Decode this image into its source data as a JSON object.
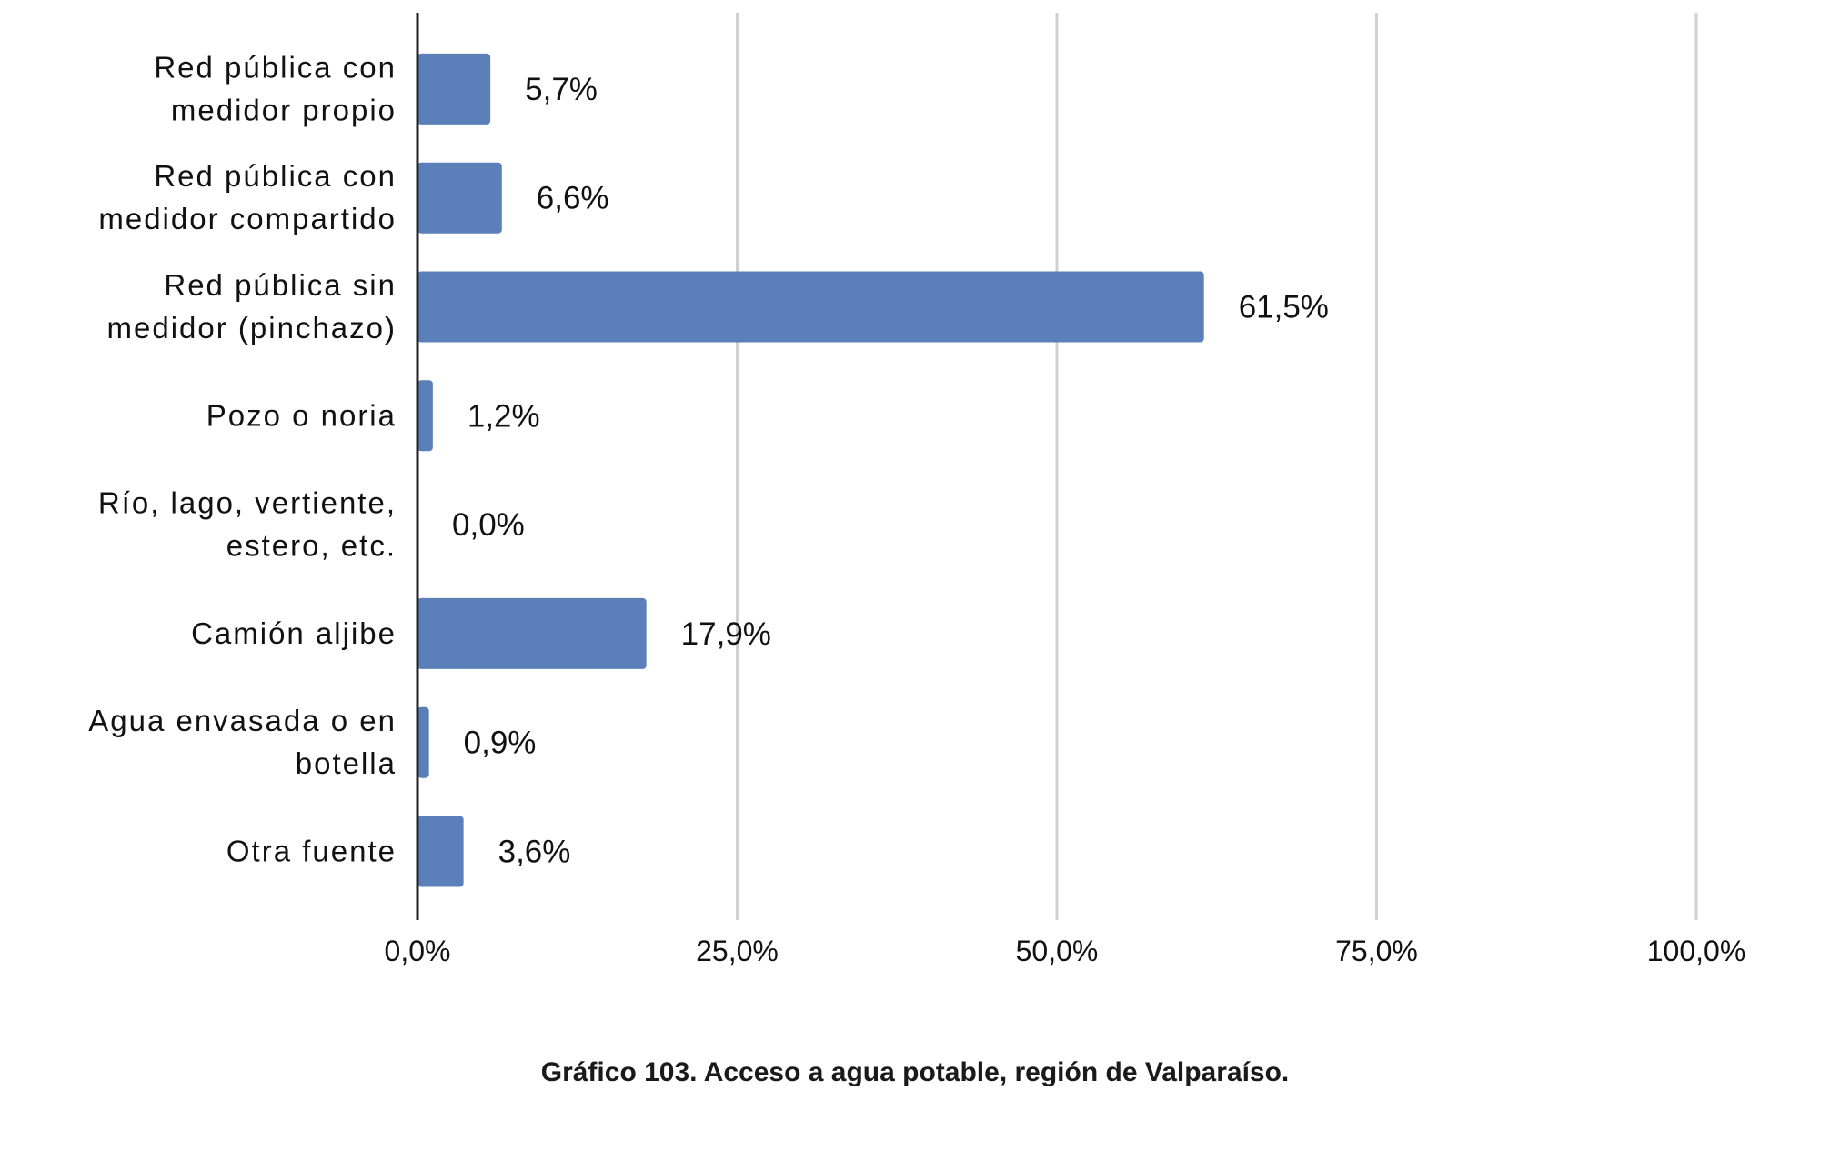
{
  "chart_data": {
    "type": "bar",
    "orientation": "horizontal",
    "categories": [
      [
        "Red pública con",
        "medidor propio"
      ],
      [
        "Red pública con",
        "medidor compartido"
      ],
      [
        "Red pública sin",
        "medidor (pinchazo)"
      ],
      [
        "Pozo o noria"
      ],
      [
        "Río, lago, vertiente,",
        "estero, etc."
      ],
      [
        "Camión aljibe"
      ],
      [
        "Agua envasada o en",
        "botella"
      ],
      [
        "Otra fuente"
      ]
    ],
    "values": [
      5.7,
      6.6,
      61.5,
      1.2,
      0.0,
      17.9,
      0.9,
      3.6
    ],
    "value_labels": [
      "5,7%",
      "6,6%",
      "61,5%",
      "1,2%",
      "0,0%",
      "17,9%",
      "0,9%",
      "3,6%"
    ],
    "xlim": [
      0,
      100
    ],
    "xticks": [
      0,
      25,
      50,
      75,
      100
    ],
    "xtick_labels": [
      "0,0%",
      "25,0%",
      "50,0%",
      "75,0%",
      "100,0%"
    ],
    "grid": "vertical",
    "legend": "none",
    "bar_color": "#5b80b9",
    "grid_color": "#d0d0d0",
    "axis_color": "#222222",
    "title": ""
  },
  "caption": "Gráfico 103. Acceso a agua potable, región de Valparaíso."
}
